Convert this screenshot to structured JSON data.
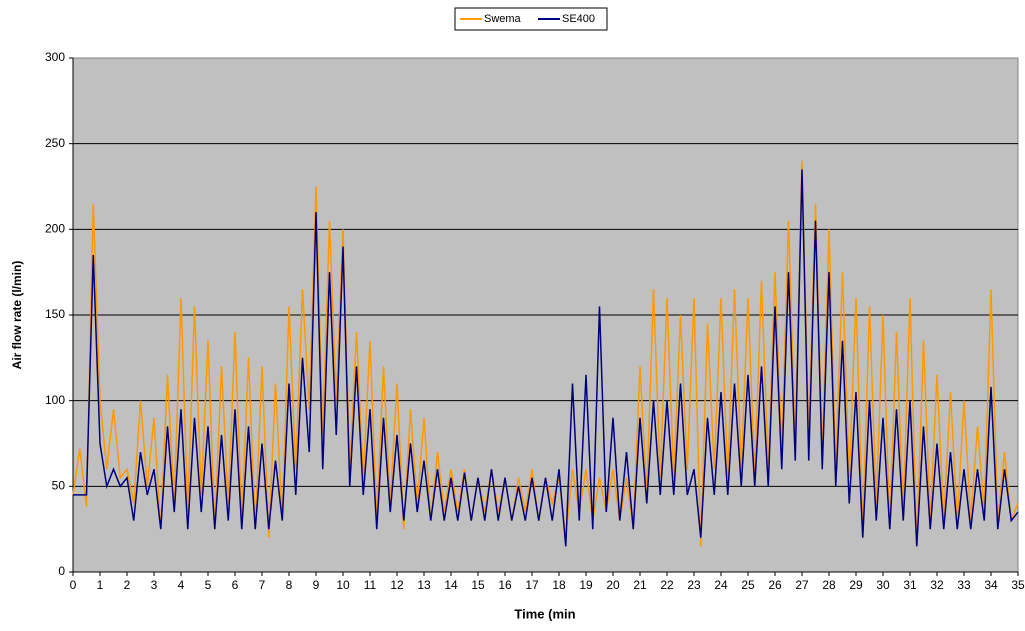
{
  "chart_data": {
    "type": "line",
    "xlabel": "Time (min",
    "ylabel": "Air flow rate (l/min)",
    "x": [
      0,
      0.25,
      0.5,
      0.75,
      1,
      1.25,
      1.5,
      1.75,
      2,
      2.25,
      2.5,
      2.75,
      3,
      3.25,
      3.5,
      3.75,
      4,
      4.25,
      4.5,
      4.75,
      5,
      5.25,
      5.5,
      5.75,
      6,
      6.25,
      6.5,
      6.75,
      7,
      7.25,
      7.5,
      7.75,
      8,
      8.25,
      8.5,
      8.75,
      9,
      9.25,
      9.5,
      9.75,
      10,
      10.25,
      10.5,
      10.75,
      11,
      11.25,
      11.5,
      11.75,
      12,
      12.25,
      12.5,
      12.75,
      13,
      13.25,
      13.5,
      13.75,
      14,
      14.25,
      14.5,
      14.75,
      15,
      15.25,
      15.5,
      15.75,
      16,
      16.25,
      16.5,
      16.75,
      17,
      17.25,
      17.5,
      17.75,
      18,
      18.25,
      18.5,
      18.75,
      19,
      19.25,
      19.5,
      19.75,
      20,
      20.25,
      20.5,
      20.75,
      21,
      21.25,
      21.5,
      21.75,
      22,
      22.25,
      22.5,
      22.75,
      23,
      23.25,
      23.5,
      23.75,
      24,
      24.25,
      24.5,
      24.75,
      25,
      25.25,
      25.5,
      25.75,
      26,
      26.25,
      26.5,
      26.75,
      27,
      27.25,
      27.5,
      27.75,
      28,
      28.25,
      28.5,
      28.75,
      29,
      29.25,
      29.5,
      29.75,
      30,
      30.25,
      30.5,
      30.75,
      31,
      31.25,
      31.5,
      31.75,
      32,
      32.25,
      32.5,
      32.75,
      33,
      33.25,
      33.5,
      33.75,
      34,
      34.25,
      34.5,
      34.75,
      35
    ],
    "series": [
      {
        "name": "Swema",
        "color": "#ff9900",
        "values": [
          45,
          72,
          38,
          215,
          100,
          60,
          95,
          55,
          60,
          40,
          100,
          50,
          90,
          25,
          115,
          40,
          160,
          35,
          155,
          45,
          135,
          25,
          120,
          40,
          140,
          30,
          125,
          25,
          120,
          20,
          110,
          30,
          155,
          60,
          165,
          95,
          225,
          80,
          205,
          100,
          200,
          60,
          140,
          55,
          135,
          30,
          120,
          40,
          110,
          25,
          95,
          40,
          90,
          30,
          70,
          35,
          60,
          35,
          60,
          30,
          55,
          35,
          60,
          35,
          55,
          30,
          55,
          35,
          60,
          30,
          55,
          40,
          55,
          20,
          60,
          35,
          60,
          30,
          55,
          35,
          60,
          30,
          55,
          25,
          120,
          45,
          165,
          55,
          160,
          55,
          150,
          60,
          160,
          15,
          145,
          60,
          160,
          55,
          165,
          60,
          160,
          55,
          170,
          60,
          175,
          70,
          205,
          75,
          240,
          80,
          215,
          70,
          200,
          60,
          175,
          55,
          160,
          25,
          155,
          40,
          150,
          25,
          140,
          35,
          160,
          15,
          135,
          30,
          115,
          30,
          105,
          30,
          100,
          30,
          85,
          35,
          165,
          30,
          70,
          30,
          40
        ]
      },
      {
        "name": "SE400",
        "color": "#000080",
        "values": [
          45,
          45,
          45,
          185,
          75,
          50,
          60,
          50,
          55,
          30,
          70,
          45,
          60,
          25,
          85,
          35,
          95,
          25,
          90,
          35,
          85,
          25,
          80,
          30,
          95,
          25,
          85,
          25,
          75,
          25,
          65,
          30,
          110,
          45,
          125,
          70,
          210,
          60,
          175,
          80,
          190,
          50,
          120,
          45,
          95,
          25,
          90,
          35,
          80,
          30,
          75,
          35,
          65,
          30,
          60,
          30,
          55,
          30,
          58,
          30,
          55,
          30,
          60,
          30,
          55,
          30,
          50,
          30,
          55,
          30,
          55,
          30,
          60,
          15,
          110,
          30,
          115,
          25,
          155,
          35,
          90,
          30,
          70,
          25,
          90,
          40,
          100,
          45,
          100,
          45,
          110,
          45,
          60,
          20,
          90,
          45,
          105,
          45,
          110,
          50,
          115,
          50,
          120,
          50,
          155,
          60,
          175,
          65,
          235,
          65,
          205,
          60,
          175,
          50,
          135,
          40,
          105,
          20,
          100,
          30,
          90,
          25,
          95,
          30,
          100,
          15,
          85,
          25,
          75,
          25,
          70,
          25,
          60,
          25,
          60,
          30,
          108,
          25,
          60,
          30,
          35
        ]
      }
    ],
    "xlim": [
      0,
      35
    ],
    "xticks": [
      0,
      1,
      2,
      3,
      4,
      5,
      6,
      7,
      8,
      9,
      10,
      11,
      12,
      13,
      14,
      15,
      16,
      17,
      18,
      19,
      20,
      21,
      22,
      23,
      24,
      25,
      26,
      27,
      28,
      29,
      30,
      31,
      32,
      33,
      34,
      35
    ],
    "ylim": [
      0,
      300
    ],
    "yticks": [
      0,
      50,
      100,
      150,
      200,
      250,
      300
    ],
    "grid": true,
    "legend": "top"
  }
}
